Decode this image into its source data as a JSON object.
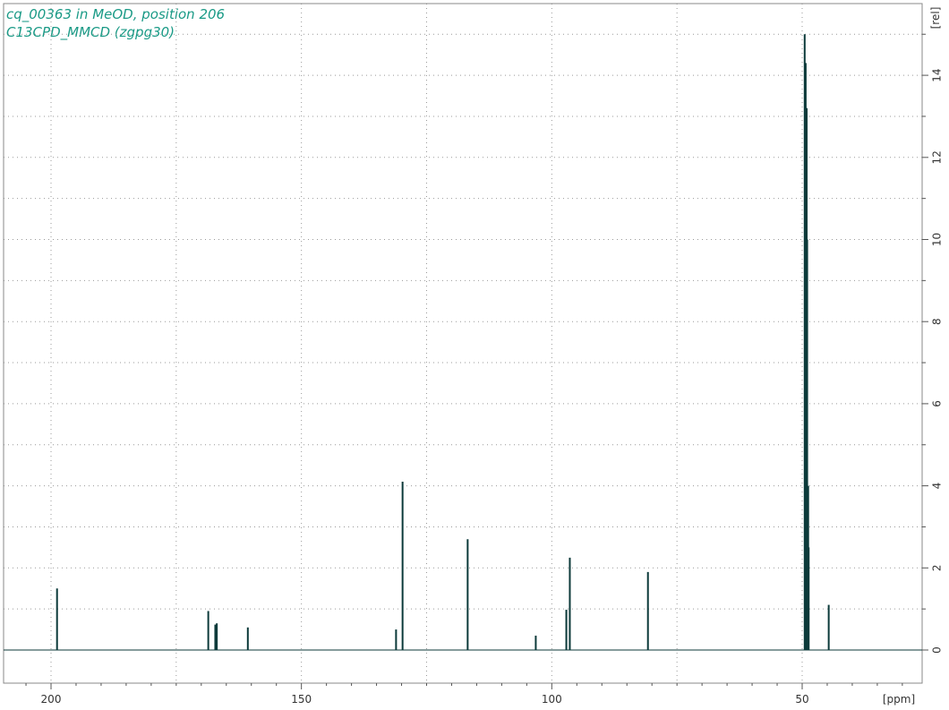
{
  "chart_data": {
    "type": "line",
    "title_lines": [
      "cq_00363 in MeOD, position 206",
      "C13CPD_MMCD (zgpg30)"
    ],
    "xlabel": "[ppm]",
    "ylabel": "[rel]",
    "xlim": [
      210,
      21
    ],
    "ylim": [
      -0.3,
      15.5
    ],
    "x_reversed": true,
    "grid": true,
    "x_ticks": [
      200,
      150,
      100,
      50
    ],
    "y_ticks": [
      0,
      2,
      4,
      6,
      8,
      10,
      12,
      14
    ],
    "peaks": [
      {
        "x": 198.8,
        "y": 1.5
      },
      {
        "x": 168.6,
        "y": 0.95
      },
      {
        "x": 167.2,
        "y": 0.62
      },
      {
        "x": 166.9,
        "y": 0.65
      },
      {
        "x": 160.7,
        "y": 0.55
      },
      {
        "x": 131.1,
        "y": 0.5
      },
      {
        "x": 129.8,
        "y": 4.1
      },
      {
        "x": 116.8,
        "y": 2.7
      },
      {
        "x": 103.2,
        "y": 0.35
      },
      {
        "x": 97.1,
        "y": 0.98
      },
      {
        "x": 96.4,
        "y": 2.25
      },
      {
        "x": 80.8,
        "y": 1.9
      },
      {
        "x": 49.5,
        "y": 15.0
      },
      {
        "x": 49.3,
        "y": 14.3
      },
      {
        "x": 49.1,
        "y": 13.2
      },
      {
        "x": 49.0,
        "y": 10.0
      },
      {
        "x": 48.8,
        "y": 4.0
      },
      {
        "x": 48.7,
        "y": 2.5
      },
      {
        "x": 44.7,
        "y": 1.1
      }
    ]
  }
}
